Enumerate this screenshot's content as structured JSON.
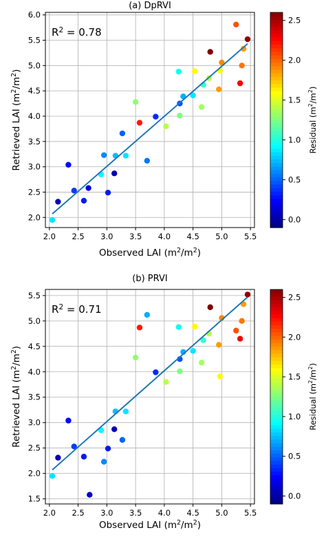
{
  "chart_data": [
    {
      "type": "scatter",
      "title": "(a) DpRVI",
      "xlabel": "Observed LAI (m²/m²)",
      "ylabel": "Retrieved LAI (m²/m²)",
      "annotation": "R² = 0.78",
      "xlim": [
        1.93,
        5.57
      ],
      "ylim": [
        1.8,
        6.05
      ],
      "xticks": [
        "2.0",
        "2.5",
        "3.0",
        "3.5",
        "4.0",
        "4.5",
        "5.0",
        "5.5"
      ],
      "yticks": [
        "2.0",
        "2.5",
        "3.0",
        "3.5",
        "4.0",
        "4.5",
        "5.0",
        "5.5",
        "6.0"
      ],
      "grid": true,
      "fit_line": {
        "x": [
          2.05,
          5.45
        ],
        "y": [
          2.07,
          5.43
        ]
      },
      "points": [
        {
          "x": 2.05,
          "y": 1.95,
          "r": 0.85
        },
        {
          "x": 2.15,
          "y": 2.31,
          "r": 0.05
        },
        {
          "x": 2.33,
          "y": 3.04,
          "r": 0.25
        },
        {
          "x": 2.43,
          "y": 2.53,
          "r": 0.4
        },
        {
          "x": 2.6,
          "y": 2.33,
          "r": 0.3
        },
        {
          "x": 2.68,
          "y": 2.58,
          "r": 0.15
        },
        {
          "x": 2.9,
          "y": 2.85,
          "r": 0.9
        },
        {
          "x": 2.95,
          "y": 3.23,
          "r": 0.6
        },
        {
          "x": 3.02,
          "y": 2.49,
          "r": 0.3
        },
        {
          "x": 3.13,
          "y": 2.87,
          "r": 0.05
        },
        {
          "x": 3.15,
          "y": 3.22,
          "r": 0.75
        },
        {
          "x": 3.27,
          "y": 3.66,
          "r": 0.5
        },
        {
          "x": 3.33,
          "y": 3.22,
          "r": 0.85
        },
        {
          "x": 3.5,
          "y": 4.28,
          "r": 1.3
        },
        {
          "x": 3.57,
          "y": 3.87,
          "r": 2.2
        },
        {
          "x": 3.7,
          "y": 3.12,
          "r": 0.55
        },
        {
          "x": 3.85,
          "y": 3.99,
          "r": 0.35
        },
        {
          "x": 4.03,
          "y": 3.8,
          "r": 1.4
        },
        {
          "x": 4.25,
          "y": 4.88,
          "r": 0.95
        },
        {
          "x": 4.27,
          "y": 4.25,
          "r": 0.45
        },
        {
          "x": 4.27,
          "y": 4.01,
          "r": 1.25
        },
        {
          "x": 4.33,
          "y": 4.39,
          "r": 0.7
        },
        {
          "x": 4.5,
          "y": 4.41,
          "r": 0.85
        },
        {
          "x": 4.53,
          "y": 4.89,
          "r": 1.6
        },
        {
          "x": 4.65,
          "y": 4.18,
          "r": 1.35
        },
        {
          "x": 4.68,
          "y": 4.62,
          "r": 1.05
        },
        {
          "x": 4.78,
          "y": 4.75,
          "r": 1.4
        },
        {
          "x": 4.8,
          "y": 5.27,
          "r": 2.6
        },
        {
          "x": 4.95,
          "y": 4.53,
          "r": 1.85
        },
        {
          "x": 4.97,
          "y": 4.9,
          "r": 1.6
        },
        {
          "x": 5.0,
          "y": 5.06,
          "r": 1.9
        },
        {
          "x": 5.25,
          "y": 5.81,
          "r": 2.05
        },
        {
          "x": 5.32,
          "y": 4.65,
          "r": 2.3
        },
        {
          "x": 5.35,
          "y": 5.0,
          "r": 1.95
        },
        {
          "x": 5.38,
          "y": 5.33,
          "r": 1.85
        },
        {
          "x": 5.45,
          "y": 5.52,
          "r": 2.55
        }
      ]
    },
    {
      "type": "scatter",
      "title": "(b) PRVI",
      "xlabel": "Observed LAI (m²/m²)",
      "ylabel": "Retrieved LAI (m²/m²)",
      "annotation": "R² = 0.71",
      "xlim": [
        1.93,
        5.57
      ],
      "ylim": [
        1.4,
        5.62
      ],
      "xticks": [
        "2.0",
        "2.5",
        "3.0",
        "3.5",
        "4.0",
        "4.5",
        "5.0",
        "5.5"
      ],
      "yticks": [
        "1.5",
        "2.0",
        "2.5",
        "3.0",
        "3.5",
        "4.0",
        "4.5",
        "5.0",
        "5.5"
      ],
      "grid": true,
      "fit_line": {
        "x": [
          2.05,
          5.45
        ],
        "y": [
          2.07,
          5.47
        ]
      },
      "points": [
        {
          "x": 2.05,
          "y": 1.95,
          "r": 0.85
        },
        {
          "x": 2.15,
          "y": 2.31,
          "r": 0.05
        },
        {
          "x": 2.33,
          "y": 3.04,
          "r": 0.25
        },
        {
          "x": 2.43,
          "y": 2.53,
          "r": 0.4
        },
        {
          "x": 2.6,
          "y": 2.33,
          "r": 0.3
        },
        {
          "x": 2.7,
          "y": 1.58,
          "r": 0.1
        },
        {
          "x": 2.9,
          "y": 2.85,
          "r": 0.9
        },
        {
          "x": 2.95,
          "y": 2.23,
          "r": 0.6
        },
        {
          "x": 3.02,
          "y": 2.49,
          "r": 0.3
        },
        {
          "x": 3.13,
          "y": 2.87,
          "r": 0.05
        },
        {
          "x": 3.15,
          "y": 3.22,
          "r": 0.75
        },
        {
          "x": 3.27,
          "y": 2.66,
          "r": 0.5
        },
        {
          "x": 3.33,
          "y": 3.22,
          "r": 0.85
        },
        {
          "x": 3.5,
          "y": 4.28,
          "r": 1.3
        },
        {
          "x": 3.57,
          "y": 4.87,
          "r": 2.2
        },
        {
          "x": 3.7,
          "y": 5.12,
          "r": 0.7
        },
        {
          "x": 3.85,
          "y": 3.99,
          "r": 0.35
        },
        {
          "x": 4.03,
          "y": 3.8,
          "r": 1.4
        },
        {
          "x": 4.25,
          "y": 4.88,
          "r": 0.95
        },
        {
          "x": 4.27,
          "y": 4.25,
          "r": 0.45
        },
        {
          "x": 4.27,
          "y": 4.01,
          "r": 1.25
        },
        {
          "x": 4.33,
          "y": 4.39,
          "r": 0.7
        },
        {
          "x": 4.5,
          "y": 4.41,
          "r": 0.85
        },
        {
          "x": 4.53,
          "y": 4.89,
          "r": 1.6
        },
        {
          "x": 4.65,
          "y": 4.18,
          "r": 1.35
        },
        {
          "x": 4.68,
          "y": 4.62,
          "r": 1.05
        },
        {
          "x": 4.78,
          "y": 4.75,
          "r": 1.4
        },
        {
          "x": 4.8,
          "y": 5.27,
          "r": 2.6
        },
        {
          "x": 4.95,
          "y": 4.53,
          "r": 1.85
        },
        {
          "x": 4.97,
          "y": 3.91,
          "r": 1.6
        },
        {
          "x": 5.0,
          "y": 5.06,
          "r": 1.9
        },
        {
          "x": 5.25,
          "y": 4.81,
          "r": 2.05
        },
        {
          "x": 5.32,
          "y": 4.65,
          "r": 2.3
        },
        {
          "x": 5.35,
          "y": 5.0,
          "r": 1.95
        },
        {
          "x": 5.38,
          "y": 5.33,
          "r": 1.85
        },
        {
          "x": 5.45,
          "y": 5.52,
          "r": 2.55
        }
      ]
    }
  ],
  "colorbars": [
    {
      "label": "Residual (m²/m²)",
      "range": [
        -0.1,
        2.6
      ],
      "ticks": [
        "0.0",
        "0.5",
        "1.0",
        "1.5",
        "2.0",
        "2.5"
      ],
      "colormap": "jet"
    },
    {
      "label": "Residual (m²/m²)",
      "range": [
        -0.1,
        2.6
      ],
      "ticks": [
        "0.0",
        "0.5",
        "1.0",
        "1.5",
        "2.0",
        "2.5"
      ],
      "colormap": "jet"
    }
  ],
  "style": {
    "point_edge": "none",
    "fit_line_color": "#1f77b4",
    "annotation_color": "#1a237e",
    "grid_color": "#b0b0b0"
  }
}
